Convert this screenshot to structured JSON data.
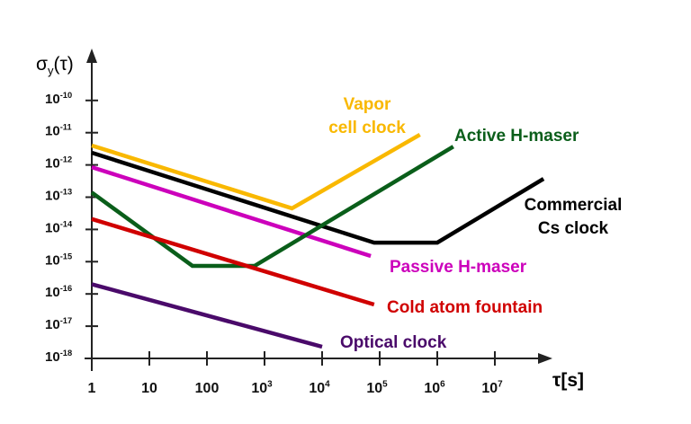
{
  "chart_data": {
    "type": "line",
    "title": "",
    "ylabel": "σy(τ)",
    "xlabel": "τ[s]",
    "x_scale": "log",
    "y_scale": "log",
    "xlim": [
      1,
      30000000
    ],
    "ylim": [
      1e-18,
      1e-09
    ],
    "grid": false,
    "legend": "inline labels next to lines",
    "x_ticks": [
      {
        "value": 1,
        "base": "1",
        "sup": ""
      },
      {
        "value": 10,
        "base": "10",
        "sup": ""
      },
      {
        "value": 100,
        "base": "100",
        "sup": ""
      },
      {
        "value": 1000,
        "base": "10",
        "sup": "3"
      },
      {
        "value": 10000,
        "base": "10",
        "sup": "4"
      },
      {
        "value": 100000,
        "base": "10",
        "sup": "5"
      },
      {
        "value": 1000000,
        "base": "10",
        "sup": "6"
      },
      {
        "value": 10000000,
        "base": "10",
        "sup": "7"
      }
    ],
    "y_ticks": [
      {
        "value": 1e-10,
        "base": "10",
        "sup": "-10"
      },
      {
        "value": 1e-11,
        "base": "10",
        "sup": "-11"
      },
      {
        "value": 1e-12,
        "base": "10",
        "sup": "-12"
      },
      {
        "value": 1e-13,
        "base": "10",
        "sup": "-13"
      },
      {
        "value": 1e-14,
        "base": "10",
        "sup": "-14"
      },
      {
        "value": 1e-15,
        "base": "10",
        "sup": "-15"
      },
      {
        "value": 1e-16,
        "base": "10",
        "sup": "-16"
      },
      {
        "value": 1e-17,
        "base": "10",
        "sup": "-17"
      },
      {
        "value": 1e-18,
        "base": "10",
        "sup": "-18"
      }
    ],
    "series": [
      {
        "name": "Vapor cell clock",
        "label_lines": [
          "Vapor",
          "cell clock"
        ],
        "color": "#F9B800",
        "points": [
          [
            1,
            4e-12
          ],
          [
            3000,
            4.5e-14
          ],
          [
            500000,
            8.7e-12
          ]
        ]
      },
      {
        "name": "Commercial Cs clock",
        "label_lines": [
          "Commercial",
          "Cs clock"
        ],
        "color": "#000000",
        "points": [
          [
            1,
            2.4e-12
          ],
          [
            80000,
            3.9e-15
          ],
          [
            1000000,
            3.9e-15
          ],
          [
            70000000,
            3.7e-13
          ]
        ]
      },
      {
        "name": "Passive H-maser",
        "label_lines": [
          "Passive H-maser"
        ],
        "color": "#CC00BB",
        "points": [
          [
            1,
            8.5e-13
          ],
          [
            70000,
            1.5e-15
          ]
        ]
      },
      {
        "name": "Active H-maser",
        "label_lines": [
          "Active H-maser"
        ],
        "color": "#0A5E1A",
        "points": [
          [
            1,
            1.4e-13
          ],
          [
            56,
            7.4e-16
          ],
          [
            670,
            7.4e-16
          ],
          [
            1900000,
            3.7e-12
          ]
        ]
      },
      {
        "name": "Cold atom fountain",
        "label_lines": [
          "Cold atom fountain"
        ],
        "color": "#D00000",
        "points": [
          [
            1,
            2.1e-14
          ],
          [
            80000,
            4.7e-17
          ]
        ]
      },
      {
        "name": "Optical clock",
        "label_lines": [
          "Optical clock"
        ],
        "color": "#4A0A6A",
        "points": [
          [
            1,
            2e-16
          ],
          [
            10000,
            2.3e-18
          ]
        ]
      }
    ]
  }
}
